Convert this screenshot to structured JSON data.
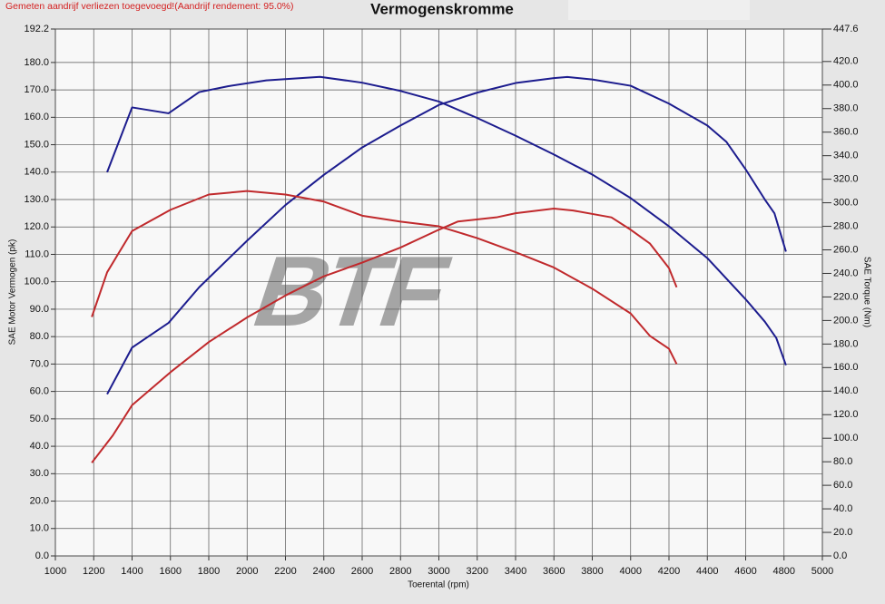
{
  "chart_data": {
    "type": "line",
    "title": "Vermogenskromme",
    "note": "Gemeten aandrijf verliezen toegevoegd!(Aandrijf rendement: 95.0%)",
    "watermark": "BTF",
    "xlabel": "Toerental (rpm)",
    "ylabel": "SAE Motor Vermogen (pk)",
    "y2label": "SAE Torque (Nm)",
    "grid": true,
    "xlim": [
      1000,
      5000
    ],
    "xticks": [
      1000,
      1200,
      1400,
      1600,
      1800,
      2000,
      2200,
      2400,
      2600,
      2800,
      3000,
      3200,
      3400,
      3600,
      3800,
      4000,
      4200,
      4400,
      4600,
      4800,
      5000
    ],
    "ylim": [
      0,
      192.2
    ],
    "yticks": [
      {
        "value": 0,
        "label": "0.0"
      },
      {
        "value": 10,
        "label": "10.0"
      },
      {
        "value": 20,
        "label": "20.0"
      },
      {
        "value": 30,
        "label": "30.0"
      },
      {
        "value": 40,
        "label": "40.0"
      },
      {
        "value": 50,
        "label": "50.0"
      },
      {
        "value": 60,
        "label": "60.0"
      },
      {
        "value": 70,
        "label": "70.0"
      },
      {
        "value": 80,
        "label": "80.0"
      },
      {
        "value": 90,
        "label": "90.0"
      },
      {
        "value": 100,
        "label": "100.0"
      },
      {
        "value": 110,
        "label": "110.0"
      },
      {
        "value": 120,
        "label": "120.0"
      },
      {
        "value": 130,
        "label": "130.0"
      },
      {
        "value": 140,
        "label": "140.0"
      },
      {
        "value": 150,
        "label": "150.0"
      },
      {
        "value": 160,
        "label": "160.0"
      },
      {
        "value": 170,
        "label": "170.0"
      },
      {
        "value": 180,
        "label": "180.0"
      },
      192.2
    ],
    "y2lim": [
      0,
      447.6
    ],
    "y2ticks": [
      {
        "value": 0,
        "label": "0.0"
      },
      {
        "value": 20,
        "label": "20.0"
      },
      {
        "value": 40,
        "label": "40.0"
      },
      {
        "value": 60,
        "label": "60.0"
      },
      {
        "value": 80,
        "label": "80.0"
      },
      {
        "value": 100,
        "label": "100.0"
      },
      {
        "value": 120,
        "label": "120.0"
      },
      {
        "value": 140,
        "label": "140.0"
      },
      {
        "value": 160,
        "label": "160.0"
      },
      {
        "value": 180,
        "label": "180.0"
      },
      {
        "value": 200,
        "label": "200.0"
      },
      {
        "value": 220,
        "label": "220.0"
      },
      {
        "value": 240,
        "label": "240.0"
      },
      {
        "value": 260,
        "label": "260.0"
      },
      {
        "value": 280,
        "label": "280.0"
      },
      {
        "value": 300,
        "label": "300.0"
      },
      {
        "value": 320,
        "label": "320.0"
      },
      {
        "value": 340,
        "label": "340.0"
      },
      {
        "value": 360,
        "label": "360.0"
      },
      {
        "value": 380,
        "label": "380.0"
      },
      {
        "value": 400,
        "label": "400.0"
      },
      {
        "value": 420,
        "label": "420.0"
      },
      447.6
    ],
    "series": [
      {
        "color": "#1c1c8e",
        "axis": "y",
        "x": [
          1270,
          1400,
          1590,
          1750,
          2000,
          2200,
          2400,
          2600,
          2800,
          3000,
          3200,
          3400,
          3600,
          3670,
          3800,
          4000,
          4200,
          4400,
          4500,
          4600,
          4700,
          4750,
          4810
        ],
        "values": [
          59,
          76,
          85,
          98,
          115,
          128,
          139,
          149,
          157,
          164.5,
          169,
          172.5,
          174.3,
          174.7,
          173.8,
          171.5,
          165,
          157,
          151,
          141,
          130,
          125,
          111
        ]
      },
      {
        "color": "#1c1c8e",
        "axis": "y2",
        "x": [
          1270,
          1400,
          1590,
          1750,
          1900,
          2100,
          2380,
          2600,
          2800,
          3000,
          3200,
          3400,
          3600,
          3800,
          4000,
          4200,
          4400,
          4600,
          4700,
          4760,
          4810
        ],
        "values": [
          326,
          381,
          376,
          394,
          399,
          404,
          407,
          402,
          395,
          386,
          372,
          357,
          341,
          324,
          304,
          280,
          253,
          218,
          199,
          185,
          162
        ]
      },
      {
        "color": "#c0292c",
        "axis": "y",
        "x": [
          1190,
          1300,
          1400,
          1600,
          1800,
          2000,
          2200,
          2400,
          2600,
          2800,
          3000,
          3100,
          3300,
          3400,
          3600,
          3700,
          3900,
          4000,
          4100,
          4200,
          4240
        ],
        "values": [
          34,
          44,
          55,
          67,
          78,
          87,
          95,
          102,
          107,
          112.5,
          119,
          122,
          123.5,
          125,
          126.7,
          126,
          123.5,
          119,
          114,
          105,
          98
        ]
      },
      {
        "color": "#c0292c",
        "axis": "y2",
        "x": [
          1190,
          1270,
          1400,
          1600,
          1800,
          2000,
          2200,
          2400,
          2600,
          2800,
          3000,
          3200,
          3400,
          3600,
          3800,
          4000,
          4100,
          4200,
          4240
        ],
        "values": [
          203,
          241,
          276,
          294,
          307,
          310,
          307,
          301,
          289,
          284,
          280,
          270,
          258,
          245,
          227,
          206,
          187,
          176,
          163
        ]
      }
    ]
  }
}
